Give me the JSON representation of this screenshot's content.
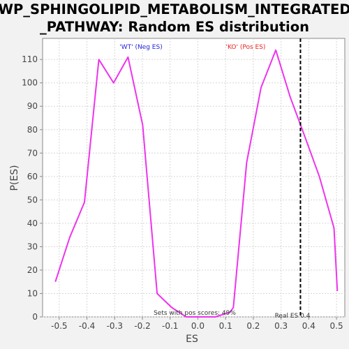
{
  "chart_data": {
    "type": "line",
    "title_line1": "WP_SPHINGOLIPID_METABOLISM_INTEGRATED",
    "title_line2": "_PATHWAY: Random ES distribution",
    "xlabel": "ES",
    "ylabel": "P(ES)",
    "xlim": [
      -0.56,
      0.53
    ],
    "ylim": [
      0,
      119
    ],
    "xticks": [
      -0.5,
      -0.4,
      -0.3,
      -0.2,
      -0.1,
      0.0,
      0.1,
      0.2,
      0.3,
      0.4,
      0.5
    ],
    "xtick_labels": [
      "-0.5",
      "-0.4",
      "-0.3",
      "-0.2",
      "-0.1",
      "0.0",
      "0.1",
      "0.2",
      "0.3",
      "0.4",
      "0.5"
    ],
    "yticks": [
      0,
      10,
      20,
      30,
      40,
      50,
      60,
      70,
      80,
      90,
      100,
      110
    ],
    "ytick_labels": [
      "0",
      "10",
      "20",
      "30",
      "40",
      "50",
      "60",
      "70",
      "80",
      "90",
      "100",
      "110"
    ],
    "grid": true,
    "series": [
      {
        "color": "#ee33ee",
        "x": [
          -0.514,
          -0.462,
          -0.409,
          -0.357,
          -0.304,
          -0.252,
          -0.199,
          -0.147,
          -0.094,
          -0.042,
          0.011,
          0.063,
          0.116,
          0.128,
          0.176,
          0.228,
          0.281,
          0.333,
          0.386,
          0.438,
          0.491,
          0.503
        ],
        "y": [
          15,
          34,
          49,
          110,
          100,
          111,
          82,
          10,
          4,
          0,
          0,
          0,
          2,
          4,
          66,
          98,
          114,
          94,
          77,
          60,
          38,
          11
        ]
      }
    ],
    "real_es": 0.37,
    "real_es_color": "#000000",
    "annotations": {
      "neg_label": "'WT' (Neg ES)",
      "neg_color": "#2222dd",
      "pos_label": "'KO' (Pos ES)",
      "pos_color": "#ee2222",
      "pos_scores": "Sets with pos scores: 49%",
      "real_es_label": "Real ES 0.4"
    }
  }
}
